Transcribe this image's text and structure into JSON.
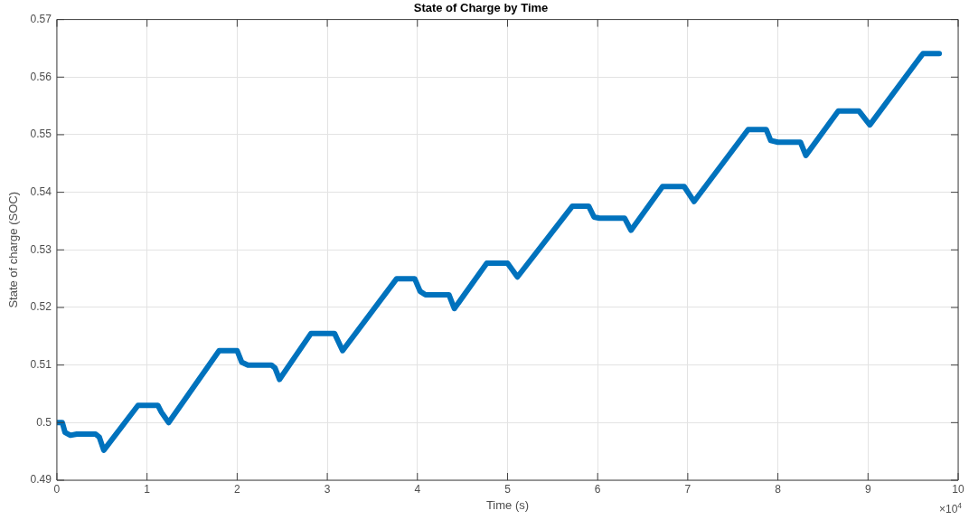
{
  "chart_data": {
    "type": "line",
    "title": "State of Charge by Time",
    "xlabel": "Time (s)",
    "ylabel": "State of charge (SOC)",
    "annotations": [
      "×10$^{4}$"
    ],
    "series": [
      {
        "color": "#0072bd",
        "x": [
          0,
          0.06,
          0.09,
          0.15,
          0.22,
          0.43,
          0.47,
          0.52,
          0.9,
          1.12,
          1.16,
          1.24,
          1.8,
          2,
          2.05,
          2.12,
          2.38,
          2.42,
          2.47,
          2.82,
          3.08,
          3.17,
          3.77,
          3.97,
          4.03,
          4.09,
          4.35,
          4.41,
          4.77,
          5,
          5.11,
          5.72,
          5.9,
          5.96,
          6.02,
          6.3,
          6.37,
          6.72,
          6.96,
          7.07,
          7.67,
          7.87,
          7.92,
          8,
          8.25,
          8.31,
          8.67,
          8.9,
          9.02,
          9.61,
          9.79
        ],
        "values": [
          0.5,
          0.5,
          0.4983,
          0.4978,
          0.498,
          0.498,
          0.4975,
          0.4952,
          0.503,
          0.503,
          0.5018,
          0.5,
          0.5125,
          0.5125,
          0.5105,
          0.51,
          0.51,
          0.5095,
          0.5075,
          0.5155,
          0.5155,
          0.5125,
          0.525,
          0.525,
          0.5228,
          0.5222,
          0.5222,
          0.5198,
          0.5277,
          0.5277,
          0.5253,
          0.5376,
          0.5376,
          0.5357,
          0.5355,
          0.5355,
          0.5334,
          0.541,
          0.541,
          0.5384,
          0.5509,
          0.5509,
          0.549,
          0.5487,
          0.5487,
          0.5464,
          0.5541,
          0.5541,
          0.5517,
          0.5641,
          0.5641
        ]
      }
    ],
    "xlim": [
      0,
      10
    ],
    "xticks": [
      0,
      1,
      2,
      3,
      4,
      5,
      6,
      7,
      8,
      9,
      10
    ],
    "ylim": [
      0.49,
      0.57
    ],
    "yticks": [
      {
        "value": 0.49,
        "label": "0.49"
      },
      {
        "value": 0.5,
        "label": "0.5"
      },
      {
        "value": 0.51,
        "label": "0.51"
      },
      {
        "value": 0.52,
        "label": "0.52"
      },
      {
        "value": 0.53,
        "label": "0.53"
      },
      {
        "value": 0.54,
        "label": "0.54"
      },
      {
        "value": 0.55,
        "label": "0.55"
      },
      {
        "value": 0.56,
        "label": "0.56"
      },
      {
        "value": 0.57,
        "label": "0.57"
      }
    ],
    "grid": true,
    "line_style": "solid",
    "marker": "none"
  }
}
